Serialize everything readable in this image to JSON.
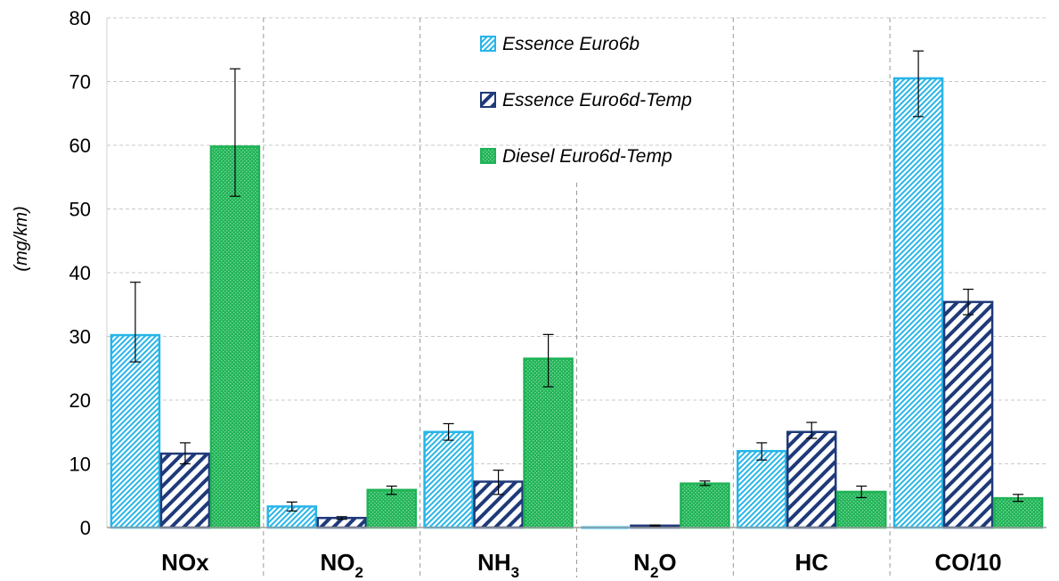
{
  "chart_data": {
    "type": "bar",
    "ylabel": "(mg/km)",
    "ylim": [
      0,
      80
    ],
    "yticks": [
      0,
      10,
      20,
      30,
      40,
      50,
      60,
      70,
      80
    ],
    "grid": "horizontal dashed",
    "legend_position": "top-center",
    "categories": [
      {
        "main": "NOx",
        "sub": "",
        "after": ""
      },
      {
        "main": "NO",
        "sub": "2",
        "after": ""
      },
      {
        "main": "NH",
        "sub": "3",
        "after": ""
      },
      {
        "main": "N",
        "sub": "2",
        "after": "O"
      },
      {
        "main": "HC",
        "sub": "",
        "after": ""
      },
      {
        "main": "CO/10",
        "sub": "",
        "after": ""
      }
    ],
    "series": [
      {
        "name": "Essence Euro6b",
        "color": "#27b5e8",
        "pattern": "light-diagonal",
        "values": [
          30.2,
          3.3,
          15.0,
          0.0,
          12.0,
          70.5
        ],
        "error_low": [
          26.0,
          2.6,
          13.7,
          0.0,
          10.6,
          64.5
        ],
        "error_high": [
          38.5,
          4.0,
          16.3,
          0.0,
          13.3,
          74.8
        ]
      },
      {
        "name": "Essence Euro6d-Temp",
        "color": "#1f3a7a",
        "pattern": "dark-diagonal",
        "values": [
          11.6,
          1.5,
          7.2,
          0.3,
          15.0,
          35.4
        ],
        "error_low": [
          10.0,
          1.3,
          5.2,
          0.2,
          14.0,
          33.4
        ],
        "error_high": [
          13.3,
          1.7,
          9.0,
          0.4,
          16.5,
          37.4
        ]
      },
      {
        "name": "Diesel Euro6d-Temp",
        "color": "#1fb356",
        "pattern": "dotted",
        "values": [
          59.8,
          5.9,
          26.5,
          6.9,
          5.6,
          4.6
        ],
        "error_low": [
          52.0,
          5.2,
          22.1,
          6.6,
          4.7,
          4.1
        ],
        "error_high": [
          72.0,
          6.5,
          30.3,
          7.3,
          6.5,
          5.2
        ]
      }
    ]
  }
}
